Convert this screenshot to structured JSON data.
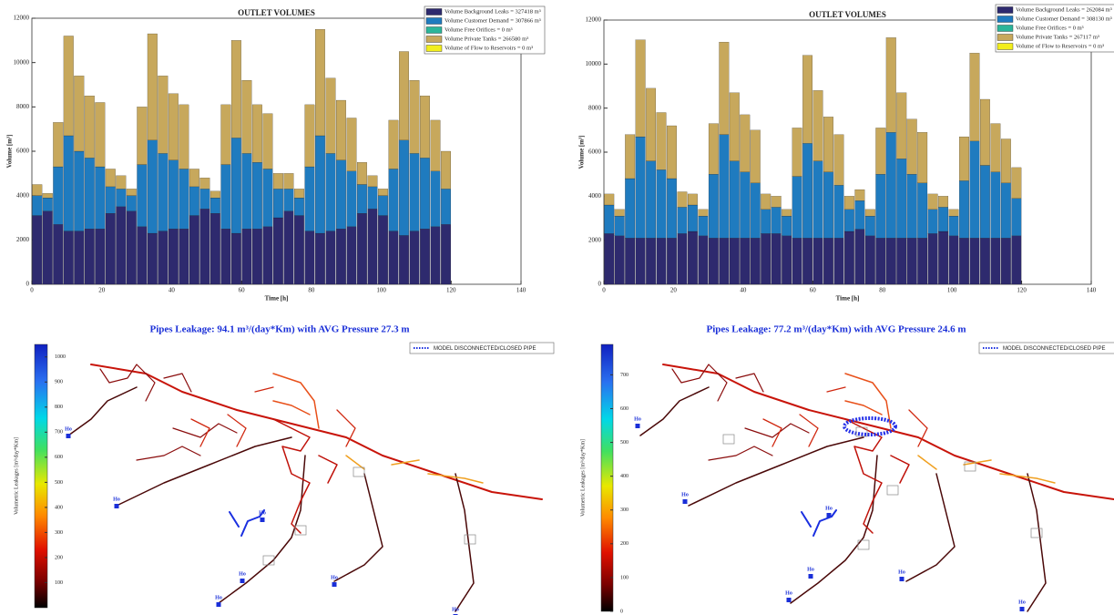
{
  "chart_data": [
    {
      "type": "bar",
      "title": "OUTLET VOLUMES",
      "x_label": "Time [h]",
      "y_label": "Volume [m³]",
      "xlim": [
        0,
        140
      ],
      "xticks": [
        0,
        20,
        40,
        60,
        80,
        100,
        120,
        140
      ],
      "ylim": [
        0,
        12000
      ],
      "yticks": [
        0,
        2000,
        4000,
        6000,
        8000,
        10000,
        12000
      ],
      "x": [
        0,
        3,
        6,
        9,
        12,
        15,
        18,
        21,
        24,
        27,
        30,
        33,
        36,
        39,
        42,
        45,
        48,
        51,
        54,
        57,
        60,
        63,
        66,
        69,
        72,
        75,
        78,
        81,
        84,
        87,
        90,
        93,
        96,
        99,
        102,
        105,
        108,
        111,
        114,
        117
      ],
      "series": [
        {
          "name": "Volume Background Leaks = 327418 m³",
          "color": "#2e2a6e",
          "values": [
            3100,
            3300,
            2700,
            2400,
            2400,
            2500,
            2500,
            3200,
            3500,
            3300,
            2600,
            2300,
            2400,
            2500,
            2500,
            3100,
            3400,
            3200,
            2500,
            2300,
            2500,
            2500,
            2600,
            3000,
            3300,
            3100,
            2400,
            2300,
            2400,
            2500,
            2600,
            3200,
            3400,
            3100,
            2400,
            2200,
            2400,
            2500,
            2600,
            2700
          ]
        },
        {
          "name": "Volume Customer Demand = 307866 m³",
          "color": "#1f7bbf",
          "values": [
            900,
            600,
            2600,
            4300,
            3600,
            3200,
            2800,
            1200,
            800,
            700,
            2800,
            4200,
            3500,
            3100,
            2700,
            1300,
            900,
            700,
            2900,
            4300,
            3400,
            3000,
            2600,
            1300,
            1000,
            800,
            2900,
            4400,
            3500,
            3100,
            2500,
            1300,
            1000,
            900,
            2800,
            4300,
            3500,
            3200,
            2500,
            1600
          ]
        },
        {
          "name": "Volume Free Orifices = 0 m³",
          "color": "#2bb59a",
          "values": [
            0,
            0,
            0,
            0,
            0,
            0,
            0,
            0,
            0,
            0,
            0,
            0,
            0,
            0,
            0,
            0,
            0,
            0,
            0,
            0,
            0,
            0,
            0,
            0,
            0,
            0,
            0,
            0,
            0,
            0,
            0,
            0,
            0,
            0,
            0,
            0,
            0,
            0,
            0,
            0
          ]
        },
        {
          "name": "Volume Private Tanks = 266580 m³",
          "color": "#c7a85c",
          "values": [
            500,
            200,
            2000,
            4500,
            3400,
            2800,
            2900,
            800,
            600,
            300,
            2600,
            4800,
            3500,
            3000,
            2900,
            800,
            500,
            300,
            2700,
            4400,
            3300,
            2600,
            2500,
            700,
            700,
            400,
            2800,
            4800,
            3400,
            2700,
            2400,
            1000,
            500,
            300,
            2200,
            4000,
            3300,
            2800,
            2300,
            1700
          ]
        },
        {
          "name": "Volume of Flow to Reservoirs = 0 m³",
          "color": "#f2ee1c",
          "values": [
            0,
            0,
            0,
            0,
            0,
            0,
            0,
            0,
            0,
            0,
            0,
            0,
            0,
            0,
            0,
            0,
            0,
            0,
            0,
            0,
            0,
            0,
            0,
            0,
            0,
            0,
            0,
            0,
            0,
            0,
            0,
            0,
            0,
            0,
            0,
            0,
            0,
            0,
            0,
            0
          ]
        }
      ]
    },
    {
      "type": "bar",
      "title": "OUTLET VOLUMES",
      "x_label": "Time [h]",
      "y_label": "Volume [m³]",
      "xlim": [
        0,
        140
      ],
      "xticks": [
        0,
        20,
        40,
        60,
        80,
        100,
        120,
        140
      ],
      "ylim": [
        0,
        12000
      ],
      "yticks": [
        0,
        2000,
        4000,
        6000,
        8000,
        10000,
        12000
      ],
      "x": [
        0,
        3,
        6,
        9,
        12,
        15,
        18,
        21,
        24,
        27,
        30,
        33,
        36,
        39,
        42,
        45,
        48,
        51,
        54,
        57,
        60,
        63,
        66,
        69,
        72,
        75,
        78,
        81,
        84,
        87,
        90,
        93,
        96,
        99,
        102,
        105,
        108,
        111,
        114,
        117
      ],
      "series": [
        {
          "name": "Volume Background Leaks = 262084 m³",
          "color": "#2e2a6e",
          "values": [
            2300,
            2200,
            2100,
            2100,
            2100,
            2100,
            2100,
            2300,
            2400,
            2200,
            2100,
            2100,
            2100,
            2100,
            2100,
            2300,
            2300,
            2200,
            2100,
            2100,
            2100,
            2100,
            2100,
            2400,
            2500,
            2200,
            2100,
            2100,
            2100,
            2100,
            2100,
            2300,
            2400,
            2200,
            2100,
            2100,
            2100,
            2100,
            2100,
            2200
          ]
        },
        {
          "name": "Volume Customer Demand = 308130 m³",
          "color": "#1f7bbf",
          "values": [
            1300,
            900,
            2700,
            4600,
            3500,
            3100,
            2700,
            1200,
            1200,
            900,
            2900,
            4700,
            3500,
            3000,
            2500,
            1100,
            1200,
            900,
            2800,
            4300,
            3500,
            3000,
            2400,
            1000,
            1300,
            900,
            2900,
            4800,
            3600,
            2900,
            2500,
            1100,
            1100,
            900,
            2600,
            4400,
            3300,
            3000,
            2500,
            1700
          ]
        },
        {
          "name": "Volume Free Orifices = 0 m³",
          "color": "#2bb59a",
          "values": [
            0,
            0,
            0,
            0,
            0,
            0,
            0,
            0,
            0,
            0,
            0,
            0,
            0,
            0,
            0,
            0,
            0,
            0,
            0,
            0,
            0,
            0,
            0,
            0,
            0,
            0,
            0,
            0,
            0,
            0,
            0,
            0,
            0,
            0,
            0,
            0,
            0,
            0,
            0,
            0
          ]
        },
        {
          "name": "Volume Private Tanks = 267117 m³",
          "color": "#c7a85c",
          "values": [
            500,
            300,
            2000,
            4400,
            3300,
            2600,
            2400,
            700,
            500,
            300,
            2300,
            4200,
            3100,
            2600,
            2400,
            700,
            500,
            300,
            2200,
            4000,
            3200,
            2500,
            2300,
            600,
            500,
            300,
            2100,
            4300,
            3000,
            2500,
            2300,
            700,
            500,
            300,
            2000,
            4000,
            3000,
            2200,
            2000,
            1400
          ]
        },
        {
          "name": "Volume of Flow to Reservoirs = 0 m³",
          "color": "#f2ee1c",
          "values": [
            0,
            0,
            0,
            0,
            0,
            0,
            0,
            0,
            0,
            0,
            0,
            0,
            0,
            0,
            0,
            0,
            0,
            0,
            0,
            0,
            0,
            0,
            0,
            0,
            0,
            0,
            0,
            0,
            0,
            0,
            0,
            0,
            0,
            0,
            0,
            0,
            0,
            0,
            0,
            0
          ]
        }
      ]
    },
    {
      "type": "map",
      "title": "Pipes Leakage: 94.1 m³/(day*Km) with AVG Pressure 27.3 m",
      "colorbar_label": "Volumetric Leakages [m³/day*Km]",
      "colorbar_lim": [
        0,
        1050
      ],
      "colorbar_ticks": [
        100,
        200,
        300,
        400,
        500,
        600,
        700,
        800,
        900,
        1000
      ],
      "legend_label": "MODEL DISCONNECTED/CLOSED PIPE",
      "node_labels": [
        "Ho",
        "Ho",
        "Ho",
        "Ho",
        "Ho",
        "Ho",
        "Ho"
      ]
    },
    {
      "type": "map",
      "title": "Pipes Leakage: 77.2 m³/(day*Km) with AVG Pressure 24.6 m",
      "colorbar_label": "Volumetric Leakages [m³/day*Km]",
      "colorbar_lim": [
        0,
        790
      ],
      "colorbar_ticks": [
        0,
        100,
        200,
        300,
        400,
        500,
        600,
        700
      ],
      "legend_label": "MODEL DISCONNECTED/CLOSED PIPE",
      "node_labels": [
        "Ho",
        "Ho",
        "Ho",
        "Ho",
        "Ho",
        "Ho",
        "Ho"
      ]
    }
  ]
}
